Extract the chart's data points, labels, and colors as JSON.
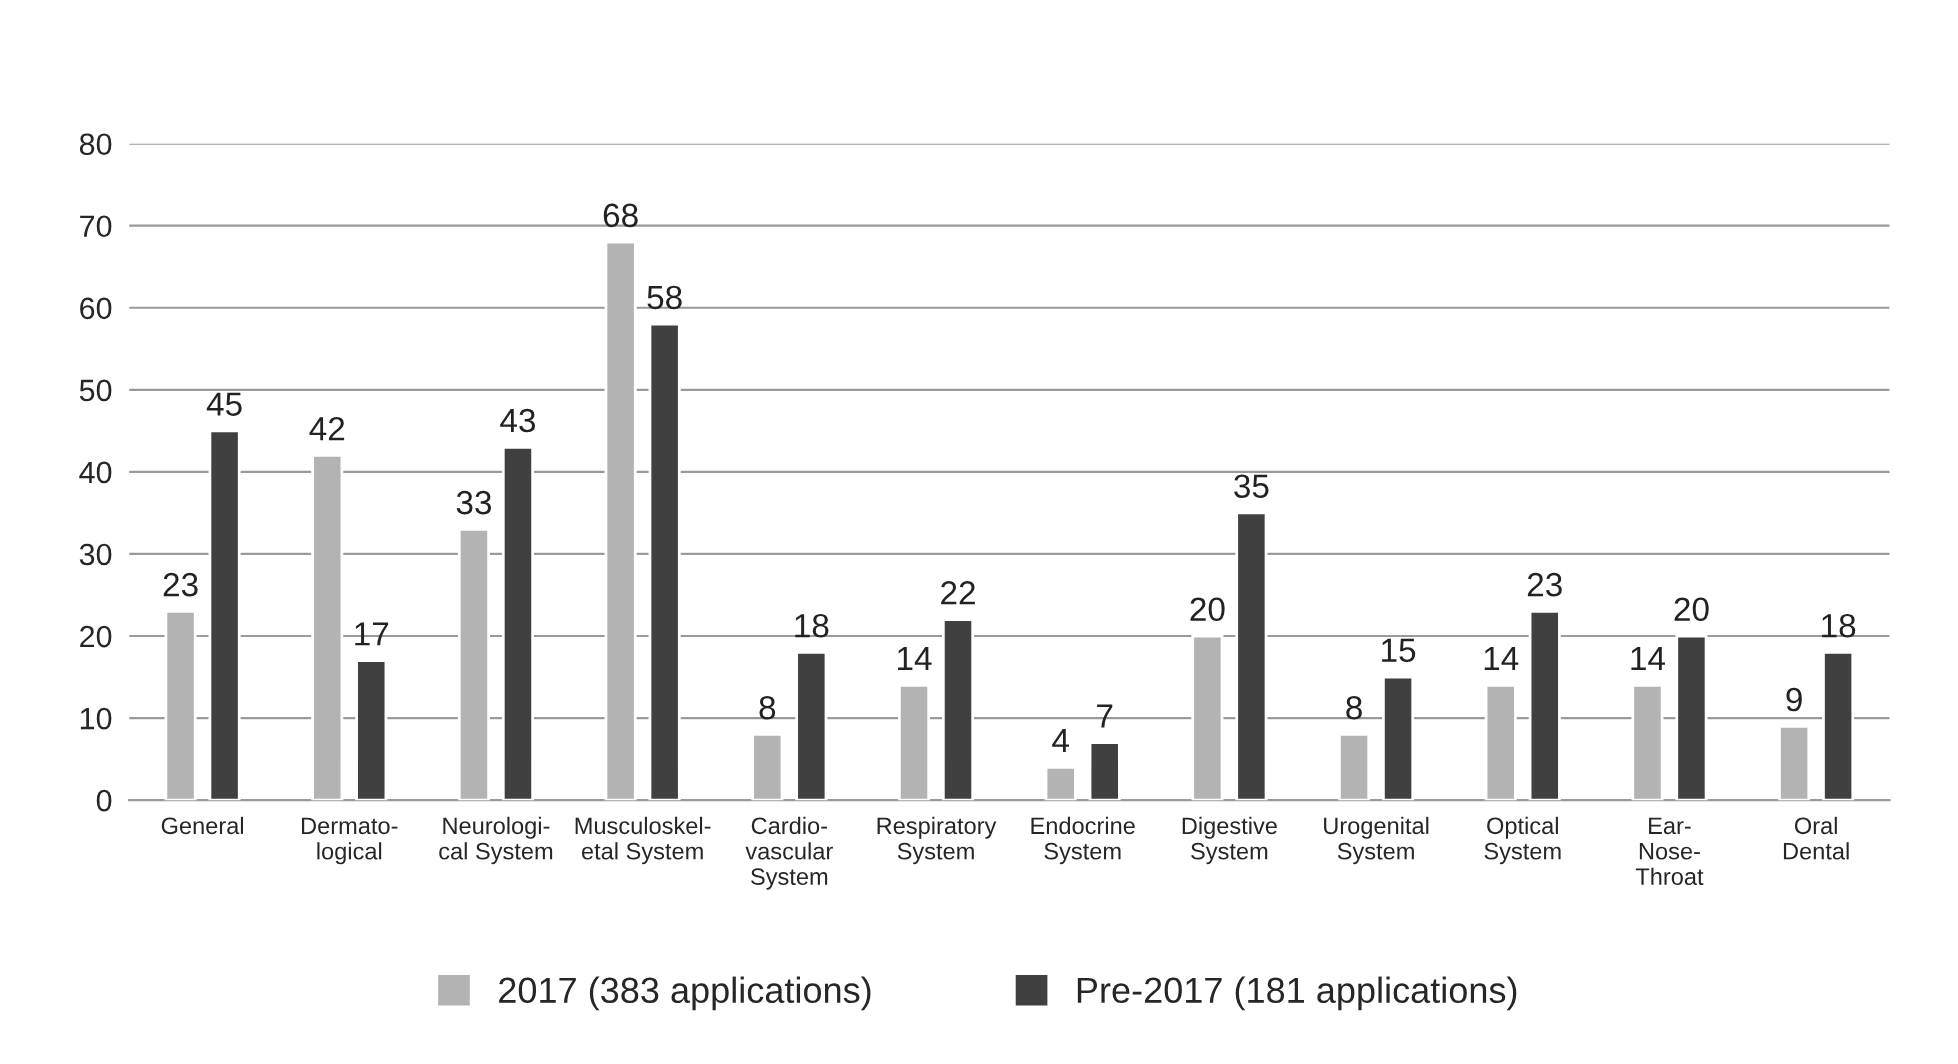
{
  "chart_data": {
    "type": "bar",
    "categories": [
      "General",
      "Dermato-\nlogical",
      "Neurologi-\ncal System",
      "Musculoskel-\netal System",
      "Cardio-\nvascular\nSystem",
      "Respiratory\nSystem",
      "Endocrine\nSystem",
      "Digestive\nSystem",
      "Urogenital\nSystem",
      "Optical\nSystem",
      "Ear-\nNose-\nThroat",
      "Oral\nDental"
    ],
    "series": [
      {
        "name": "2017 (383 applications)",
        "color": "#b3b3b3",
        "values": [
          23,
          42,
          33,
          68,
          8,
          14,
          4,
          20,
          8,
          14,
          14,
          9
        ]
      },
      {
        "name": "Pre-2017 (181 applications)",
        "color": "#404040",
        "values": [
          45,
          17,
          43,
          58,
          18,
          22,
          7,
          35,
          15,
          23,
          20,
          18
        ]
      }
    ],
    "ylim": [
      0,
      80
    ],
    "yticks": [
      0,
      10,
      20,
      30,
      40,
      50,
      60,
      70,
      80
    ],
    "grid": "y",
    "legend": "bottom",
    "data_labels": true
  }
}
